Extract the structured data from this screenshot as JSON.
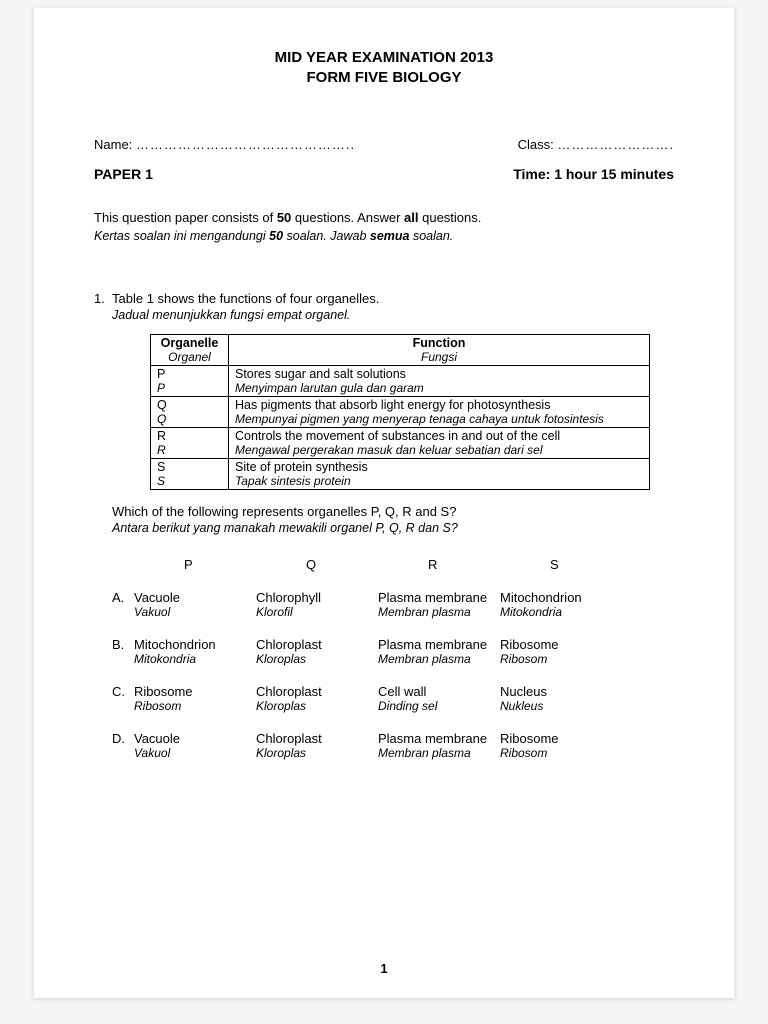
{
  "header": {
    "line1": "MID YEAR EXAMINATION 2013",
    "line2": "FORM FIVE BIOLOGY"
  },
  "meta": {
    "name_label": "Name:",
    "name_dots": "………………………………………..",
    "class_label": "Class:",
    "class_dots": "…………………….",
    "paper_label": "PAPER 1",
    "time_label": "Time: 1 hour 15 minutes"
  },
  "instructions": {
    "en_pre": "This question paper consists of ",
    "en_bold1": "50",
    "en_mid": " questions. Answer ",
    "en_bold2": "all",
    "en_post": " questions.",
    "ms_pre": "Kertas soalan ini mengandungi ",
    "ms_bold1": "50",
    "ms_mid": " soalan. Jawab ",
    "ms_bold2": "semua",
    "ms_post": " soalan."
  },
  "q1": {
    "number": "1.",
    "text_en": "Table 1 shows the functions of four organelles.",
    "text_ms": "Jadual menunjukkan fungsi empat organel.",
    "table": {
      "col1_en": "Organelle",
      "col1_ms": "Organel",
      "col2_en": "Function",
      "col2_ms": "Fungsi",
      "rows": [
        {
          "org_en": "P",
          "org_ms": "P",
          "fn_en": "Stores sugar and salt solutions",
          "fn_ms": "Menyimpan larutan gula dan garam"
        },
        {
          "org_en": "Q",
          "org_ms": "Q",
          "fn_en": "Has pigments that absorb light energy for photosynthesis",
          "fn_ms": "Mempunyai pigmen yang menyerap tenaga cahaya untuk fotosintesis"
        },
        {
          "org_en": "R",
          "org_ms": "R",
          "fn_en": "Controls the movement of substances in and out of the cell",
          "fn_ms": "Mengawal pergerakan masuk dan keluar sebatian dari sel"
        },
        {
          "org_en": "S",
          "org_ms": "S",
          "fn_en": "Site of protein synthesis",
          "fn_ms": "Tapak sintesis protein"
        }
      ]
    },
    "followup_en": "Which of the following represents organelles P, Q, R and S?",
    "followup_ms": "Antara berikut yang manakah mewakili organel P, Q, R dan S?",
    "ans_headers": [
      "P",
      "Q",
      "R",
      "S"
    ],
    "answers": [
      {
        "label": "A.",
        "cells": [
          {
            "en": "Vacuole",
            "it": "Vakuol"
          },
          {
            "en": "Chlorophyll",
            "it": "Klorofil"
          },
          {
            "en": "Plasma membrane",
            "it": "Membran plasma"
          },
          {
            "en": "Mitochondrion",
            "it": "Mitokondria"
          }
        ]
      },
      {
        "label": "B.",
        "cells": [
          {
            "en": "Mitochondrion",
            "it": "Mitokondria"
          },
          {
            "en": "Chloroplast",
            "it": "Kloroplas"
          },
          {
            "en": "Plasma membrane",
            "it": "Membran plasma"
          },
          {
            "en": "Ribosome",
            "it": "Ribosom"
          }
        ]
      },
      {
        "label": "C.",
        "cells": [
          {
            "en": "Ribosome",
            "it": "Ribosom"
          },
          {
            "en": "Chloroplast",
            "it": "Kloroplas"
          },
          {
            "en": "Cell wall",
            "it": "Dinding sel"
          },
          {
            "en": "Nucleus",
            "it": "Nukleus"
          }
        ]
      },
      {
        "label": "D.",
        "cells": [
          {
            "en": "Vacuole",
            "it": "Vakuol"
          },
          {
            "en": "Chloroplast",
            "it": "Kloroplas"
          },
          {
            "en": "Plasma membrane",
            "it": "Membran plasma"
          },
          {
            "en": "Ribosome",
            "it": "Ribosom"
          }
        ]
      }
    ]
  },
  "pagenum": "1"
}
